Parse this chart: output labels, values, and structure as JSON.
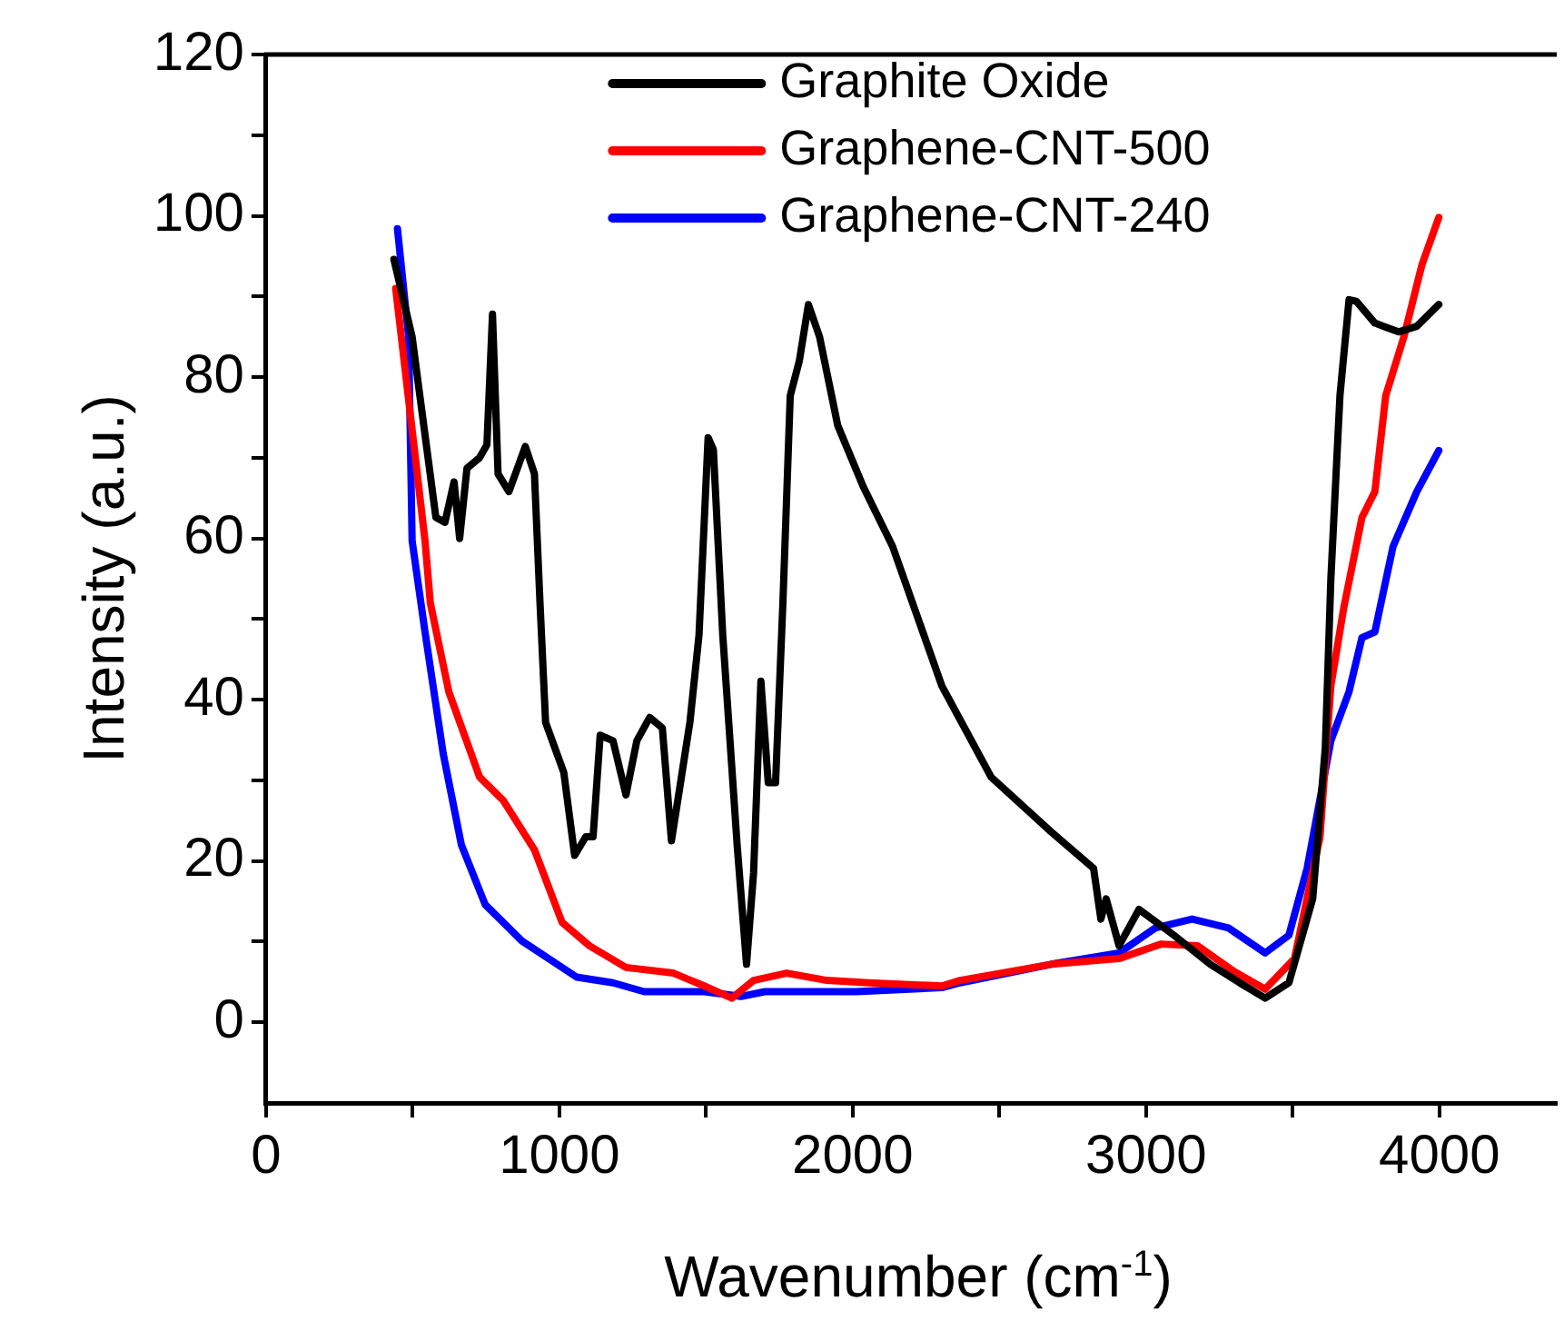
{
  "chart_data": {
    "type": "line",
    "xlabel": "Wavenumber (cm$^{-1}$)",
    "ylabel": "Intensity (a.u.)",
    "xlim": [
      0,
      4400
    ],
    "ylim": [
      -10,
      120
    ],
    "xticks": [
      0,
      {
        "value": 500,
        "label": null
      },
      1000,
      {
        "value": 1500,
        "label": null
      },
      2000,
      {
        "value": 2500,
        "label": null
      },
      3000,
      {
        "value": 3500,
        "label": null
      },
      4000
    ],
    "yticks": [
      0,
      {
        "value": 10,
        "label": null
      },
      20,
      {
        "value": 30,
        "label": null
      },
      40,
      {
        "value": 50,
        "label": null
      },
      60,
      {
        "value": 70,
        "label": null
      },
      80,
      {
        "value": 90,
        "label": null
      },
      100,
      {
        "value": 110,
        "label": null
      },
      120
    ],
    "grid": false,
    "legend": "top",
    "marker": "none",
    "line_style": "solid",
    "series": [
      {
        "name": "Graphite Oxide",
        "color": "#000000",
        "x": [
          436,
          498,
          579,
          610,
          641,
          660,
          685,
          728,
          753,
          772,
          791,
          828,
          884,
          915,
          934,
          953,
          1015,
          1052,
          1090,
          1115,
          1139,
          1183,
          1227,
          1264,
          1308,
          1351,
          1382,
          1413,
          1445,
          1476,
          1507,
          1525,
          1557,
          1606,
          1638,
          1662,
          1687,
          1712,
          1737,
          1762,
          1787,
          1818,
          1849,
          1887,
          1949,
          2036,
          2136,
          2304,
          2472,
          2677,
          2821,
          2846,
          2864,
          2908,
          2976,
          3095,
          3219,
          3319,
          3406,
          3487,
          3568,
          3611,
          3630,
          3661,
          3692,
          3717,
          3780,
          3861,
          3923,
          3998
        ],
        "values": [
          94.6,
          85,
          62.6,
          62,
          67,
          60,
          68.7,
          70,
          71.6,
          87.8,
          68,
          65.8,
          71.4,
          68,
          52,
          37.2,
          31,
          20.7,
          23,
          23,
          35.6,
          34.9,
          28.2,
          34.9,
          37.8,
          36.5,
          22.5,
          29.7,
          37.2,
          48,
          72.5,
          71,
          48,
          22,
          7.2,
          18.5,
          42.3,
          29.7,
          29.7,
          52,
          77.7,
          82,
          89,
          85,
          74,
          66.4,
          59,
          41.7,
          30.4,
          23.6,
          19.1,
          12.8,
          15.3,
          9.5,
          14,
          10.8,
          7.2,
          4.9,
          3,
          4.9,
          15.3,
          34,
          55,
          77.7,
          89.6,
          89.4,
          86.7,
          85.6,
          86.3,
          89
        ]
      },
      {
        "name": "Graphene-CNT-500",
        "color": "#ff0000",
        "x": [
          442,
          542,
          560,
          623,
          728,
          809,
          915,
          1009,
          1102,
          1227,
          1389,
          1494,
          1588,
          1662,
          1775,
          1912,
          2055,
          2304,
          2366,
          2677,
          2908,
          3051,
          3176,
          3300,
          3406,
          3506,
          3593,
          3630,
          3674,
          3736,
          3780,
          3817,
          3879,
          3941,
          3998
        ],
        "values": [
          91,
          59.7,
          52,
          41,
          30.4,
          27.5,
          21.4,
          12.4,
          9.5,
          6.8,
          6.1,
          4.5,
          3,
          5.2,
          6.1,
          5.2,
          4.9,
          4.5,
          5.2,
          7.2,
          7.9,
          9.7,
          9.5,
          6.3,
          4.1,
          7.9,
          23,
          41.7,
          51.4,
          62.6,
          65.8,
          77.7,
          85,
          94,
          99.8
        ]
      },
      {
        "name": "Graphene-CNT-240",
        "color": "#0000ff",
        "x": [
          448,
          486,
          498,
          542,
          604,
          666,
          747,
          872,
          1059,
          1183,
          1289,
          1494,
          1619,
          1700,
          2011,
          2304,
          2366,
          2677,
          2908,
          3032,
          3157,
          3281,
          3406,
          3487,
          3549,
          3630,
          3692,
          3736,
          3780,
          3842,
          3923,
          3998
        ],
        "values": [
          98.4,
          85,
          59.7,
          48.4,
          33.3,
          22,
          14.6,
          10.1,
          5.6,
          4.9,
          3.8,
          3.8,
          3.2,
          3.8,
          3.8,
          4.3,
          4.9,
          7.2,
          8.6,
          11.7,
          12.8,
          11.7,
          8.6,
          10.8,
          19.1,
          34.9,
          41,
          47.7,
          48.4,
          59,
          65.8,
          70.9
        ]
      }
    ]
  }
}
